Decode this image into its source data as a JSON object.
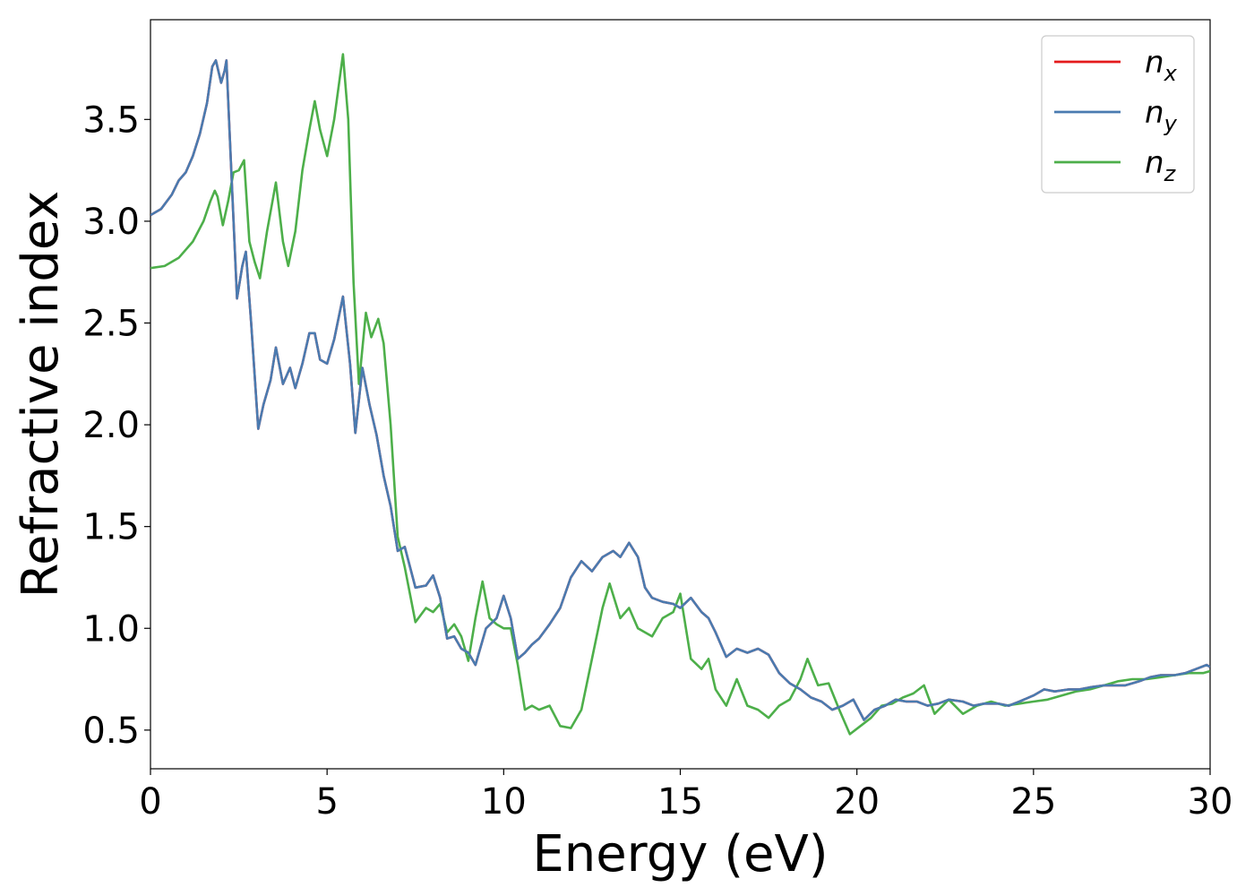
{
  "chart_data": {
    "type": "line",
    "title": "",
    "xlabel": "Energy (eV)",
    "ylabel": "Refractive index",
    "xlim": [
      0,
      30
    ],
    "ylim": [
      0.31,
      3.99
    ],
    "xticks": [
      0,
      5,
      10,
      15,
      20,
      25,
      30
    ],
    "xtick_labels": [
      "0",
      "5",
      "10",
      "15",
      "20",
      "25",
      "30"
    ],
    "yticks": [
      0.5,
      1.0,
      1.5,
      2.0,
      2.5,
      3.0,
      3.5
    ],
    "ytick_labels": [
      "0.5",
      "1.0",
      "1.5",
      "2.0",
      "2.5",
      "3.0",
      "3.5"
    ],
    "grid": false,
    "legend_position": "top-right",
    "series": [
      {
        "name": "n_x",
        "label_base": "n",
        "label_sub": "x",
        "color": "#e41a1c",
        "x": [
          0,
          0.3,
          0.6,
          0.8,
          1.0,
          1.2,
          1.4,
          1.6,
          1.75,
          1.85,
          2.0,
          2.1,
          2.15,
          2.3,
          2.45,
          2.6,
          2.7,
          2.85,
          3.05,
          3.2,
          3.4,
          3.55,
          3.75,
          3.95,
          4.1,
          4.3,
          4.5,
          4.65,
          4.8,
          5.0,
          5.2,
          5.45,
          5.65,
          5.8,
          6.0,
          6.2,
          6.4,
          6.6,
          6.8,
          7.0,
          7.2,
          7.5,
          7.8,
          8.0,
          8.2,
          8.4,
          8.6,
          8.8,
          9.0,
          9.2,
          9.5,
          9.8,
          10.0,
          10.2,
          10.4,
          10.6,
          10.8,
          11.0,
          11.3,
          11.6,
          11.9,
          12.2,
          12.5,
          12.8,
          13.1,
          13.3,
          13.55,
          13.8,
          14.0,
          14.2,
          14.5,
          14.8,
          15.0,
          15.3,
          15.6,
          15.8,
          16.0,
          16.3,
          16.6,
          16.9,
          17.2,
          17.5,
          17.8,
          18.1,
          18.4,
          18.7,
          19.0,
          19.3,
          19.6,
          19.9,
          20.2,
          20.5,
          20.8,
          21.1,
          21.4,
          21.7,
          22.0,
          22.3,
          22.6,
          23.0,
          23.3,
          23.6,
          24.0,
          24.3,
          24.6,
          25.0,
          25.3,
          25.6,
          26.0,
          26.3,
          26.6,
          27.0,
          27.3,
          27.6,
          28.0,
          28.3,
          28.6,
          29.0,
          29.3,
          29.6,
          29.9,
          30.0
        ],
        "y": [
          3.03,
          3.06,
          3.13,
          3.2,
          3.24,
          3.32,
          3.43,
          3.58,
          3.76,
          3.79,
          3.68,
          3.74,
          3.79,
          3.2,
          2.62,
          2.78,
          2.85,
          2.5,
          1.98,
          2.1,
          2.22,
          2.38,
          2.2,
          2.28,
          2.18,
          2.3,
          2.45,
          2.45,
          2.32,
          2.3,
          2.42,
          2.63,
          2.3,
          1.96,
          2.28,
          2.1,
          1.95,
          1.75,
          1.6,
          1.38,
          1.4,
          1.2,
          1.21,
          1.26,
          1.15,
          0.95,
          0.96,
          0.9,
          0.88,
          0.82,
          1.0,
          1.05,
          1.16,
          1.05,
          0.85,
          0.88,
          0.92,
          0.95,
          1.02,
          1.1,
          1.25,
          1.33,
          1.28,
          1.35,
          1.38,
          1.35,
          1.42,
          1.35,
          1.2,
          1.15,
          1.13,
          1.12,
          1.1,
          1.15,
          1.08,
          1.05,
          0.98,
          0.86,
          0.9,
          0.88,
          0.9,
          0.87,
          0.78,
          0.73,
          0.7,
          0.66,
          0.64,
          0.6,
          0.62,
          0.65,
          0.55,
          0.6,
          0.62,
          0.65,
          0.64,
          0.64,
          0.62,
          0.63,
          0.65,
          0.64,
          0.62,
          0.63,
          0.63,
          0.62,
          0.64,
          0.67,
          0.7,
          0.69,
          0.7,
          0.7,
          0.71,
          0.72,
          0.72,
          0.72,
          0.74,
          0.76,
          0.77,
          0.77,
          0.78,
          0.8,
          0.82,
          0.81
        ]
      },
      {
        "name": "n_y",
        "label_base": "n",
        "label_sub": "y",
        "color": "#4a7bb0",
        "x": [
          0,
          0.3,
          0.6,
          0.8,
          1.0,
          1.2,
          1.4,
          1.6,
          1.75,
          1.85,
          2.0,
          2.1,
          2.15,
          2.3,
          2.45,
          2.6,
          2.7,
          2.85,
          3.05,
          3.2,
          3.4,
          3.55,
          3.75,
          3.95,
          4.1,
          4.3,
          4.5,
          4.65,
          4.8,
          5.0,
          5.2,
          5.45,
          5.65,
          5.8,
          6.0,
          6.2,
          6.4,
          6.6,
          6.8,
          7.0,
          7.2,
          7.5,
          7.8,
          8.0,
          8.2,
          8.4,
          8.6,
          8.8,
          9.0,
          9.2,
          9.5,
          9.8,
          10.0,
          10.2,
          10.4,
          10.6,
          10.8,
          11.0,
          11.3,
          11.6,
          11.9,
          12.2,
          12.5,
          12.8,
          13.1,
          13.3,
          13.55,
          13.8,
          14.0,
          14.2,
          14.5,
          14.8,
          15.0,
          15.3,
          15.6,
          15.8,
          16.0,
          16.3,
          16.6,
          16.9,
          17.2,
          17.5,
          17.8,
          18.1,
          18.4,
          18.7,
          19.0,
          19.3,
          19.6,
          19.9,
          20.2,
          20.5,
          20.8,
          21.1,
          21.4,
          21.7,
          22.0,
          22.3,
          22.6,
          23.0,
          23.3,
          23.6,
          24.0,
          24.3,
          24.6,
          25.0,
          25.3,
          25.6,
          26.0,
          26.3,
          26.6,
          27.0,
          27.3,
          27.6,
          28.0,
          28.3,
          28.6,
          29.0,
          29.3,
          29.6,
          29.9,
          30.0
        ],
        "y": [
          3.03,
          3.06,
          3.13,
          3.2,
          3.24,
          3.32,
          3.43,
          3.58,
          3.76,
          3.79,
          3.68,
          3.74,
          3.79,
          3.2,
          2.62,
          2.78,
          2.85,
          2.5,
          1.98,
          2.1,
          2.22,
          2.38,
          2.2,
          2.28,
          2.18,
          2.3,
          2.45,
          2.45,
          2.32,
          2.3,
          2.42,
          2.63,
          2.3,
          1.96,
          2.28,
          2.1,
          1.95,
          1.75,
          1.6,
          1.38,
          1.4,
          1.2,
          1.21,
          1.26,
          1.15,
          0.95,
          0.96,
          0.9,
          0.88,
          0.82,
          1.0,
          1.05,
          1.16,
          1.05,
          0.85,
          0.88,
          0.92,
          0.95,
          1.02,
          1.1,
          1.25,
          1.33,
          1.28,
          1.35,
          1.38,
          1.35,
          1.42,
          1.35,
          1.2,
          1.15,
          1.13,
          1.12,
          1.1,
          1.15,
          1.08,
          1.05,
          0.98,
          0.86,
          0.9,
          0.88,
          0.9,
          0.87,
          0.78,
          0.73,
          0.7,
          0.66,
          0.64,
          0.6,
          0.62,
          0.65,
          0.55,
          0.6,
          0.62,
          0.65,
          0.64,
          0.64,
          0.62,
          0.63,
          0.65,
          0.64,
          0.62,
          0.63,
          0.63,
          0.62,
          0.64,
          0.67,
          0.7,
          0.69,
          0.7,
          0.7,
          0.71,
          0.72,
          0.72,
          0.72,
          0.74,
          0.76,
          0.77,
          0.77,
          0.78,
          0.8,
          0.82,
          0.81
        ]
      },
      {
        "name": "n_z",
        "label_base": "n",
        "label_sub": "z",
        "color": "#4daf4a",
        "x": [
          0,
          0.4,
          0.8,
          1.2,
          1.5,
          1.7,
          1.82,
          1.9,
          2.05,
          2.2,
          2.35,
          2.5,
          2.65,
          2.8,
          2.95,
          3.1,
          3.3,
          3.55,
          3.75,
          3.9,
          4.1,
          4.3,
          4.5,
          4.65,
          4.8,
          5.0,
          5.2,
          5.45,
          5.6,
          5.75,
          5.9,
          6.1,
          6.25,
          6.45,
          6.6,
          6.8,
          7.0,
          7.2,
          7.5,
          7.8,
          8.0,
          8.2,
          8.4,
          8.6,
          8.8,
          9.0,
          9.2,
          9.4,
          9.6,
          9.8,
          10.0,
          10.2,
          10.4,
          10.6,
          10.8,
          11.0,
          11.3,
          11.6,
          11.9,
          12.2,
          12.5,
          12.8,
          13.0,
          13.3,
          13.55,
          13.8,
          14.0,
          14.2,
          14.5,
          14.8,
          15.0,
          15.3,
          15.6,
          15.8,
          16.0,
          16.3,
          16.6,
          16.9,
          17.2,
          17.5,
          17.8,
          18.1,
          18.4,
          18.6,
          18.9,
          19.2,
          19.5,
          19.8,
          20.1,
          20.4,
          20.7,
          21.0,
          21.3,
          21.6,
          21.9,
          22.2,
          22.6,
          23.0,
          23.4,
          23.8,
          24.2,
          24.6,
          25.0,
          25.4,
          25.8,
          26.2,
          26.6,
          27.0,
          27.4,
          27.8,
          28.2,
          28.6,
          29.0,
          29.4,
          29.8,
          30.0
        ],
        "y": [
          2.77,
          2.78,
          2.82,
          2.9,
          3.0,
          3.1,
          3.15,
          3.12,
          2.98,
          3.1,
          3.24,
          3.25,
          3.3,
          2.9,
          2.8,
          2.72,
          2.95,
          3.19,
          2.9,
          2.78,
          2.95,
          3.25,
          3.45,
          3.59,
          3.45,
          3.32,
          3.5,
          3.82,
          3.5,
          2.7,
          2.2,
          2.55,
          2.43,
          2.52,
          2.4,
          2.0,
          1.45,
          1.3,
          1.03,
          1.1,
          1.08,
          1.12,
          0.98,
          1.02,
          0.96,
          0.84,
          1.05,
          1.23,
          1.05,
          1.02,
          1.0,
          1.0,
          0.82,
          0.6,
          0.62,
          0.6,
          0.62,
          0.52,
          0.51,
          0.6,
          0.85,
          1.1,
          1.22,
          1.05,
          1.1,
          1.0,
          0.98,
          0.96,
          1.05,
          1.08,
          1.17,
          0.85,
          0.8,
          0.85,
          0.7,
          0.62,
          0.75,
          0.62,
          0.6,
          0.56,
          0.62,
          0.65,
          0.75,
          0.85,
          0.72,
          0.73,
          0.6,
          0.48,
          0.52,
          0.56,
          0.62,
          0.63,
          0.66,
          0.68,
          0.72,
          0.58,
          0.65,
          0.58,
          0.62,
          0.64,
          0.62,
          0.63,
          0.64,
          0.65,
          0.67,
          0.69,
          0.7,
          0.72,
          0.74,
          0.75,
          0.75,
          0.76,
          0.77,
          0.78,
          0.78,
          0.79
        ]
      }
    ]
  }
}
